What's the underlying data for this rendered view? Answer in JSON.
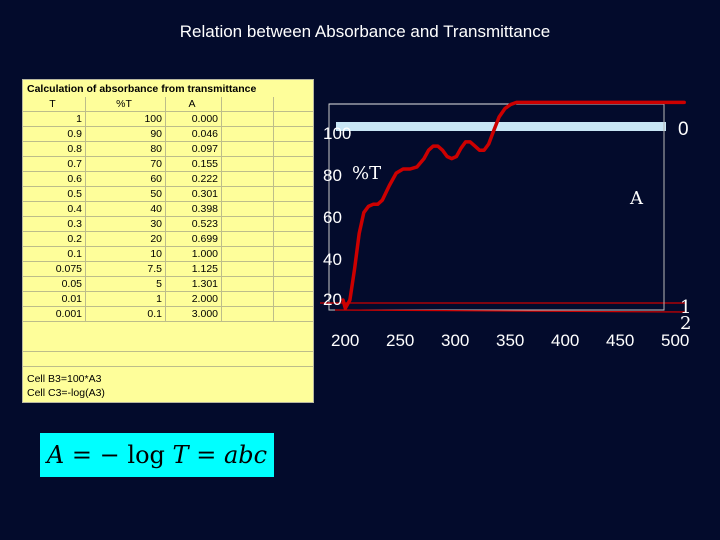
{
  "title": "Relation between Absorbance and Transmittance",
  "spreadsheet": {
    "caption": "Calculation of absorbance from transmittance",
    "headers": [
      "T",
      "%T",
      "A"
    ],
    "rows": [
      [
        "1",
        "100",
        "0.000"
      ],
      [
        "0.9",
        "90",
        "0.046"
      ],
      [
        "0.8",
        "80",
        "0.097"
      ],
      [
        "0.7",
        "70",
        "0.155"
      ],
      [
        "0.6",
        "60",
        "0.222"
      ],
      [
        "0.5",
        "50",
        "0.301"
      ],
      [
        "0.4",
        "40",
        "0.398"
      ],
      [
        "0.3",
        "30",
        "0.523"
      ],
      [
        "0.2",
        "20",
        "0.699"
      ],
      [
        "0.1",
        "10",
        "1.000"
      ],
      [
        "0.075",
        "7.5",
        "1.125"
      ],
      [
        "0.05",
        "5",
        "1.301"
      ],
      [
        "0.01",
        "1",
        "2.000"
      ],
      [
        "0.001",
        "0.1",
        "3.000"
      ]
    ],
    "notes": [
      "Cell B3=100*A3",
      "Cell C3=-log(A3)"
    ]
  },
  "equation": {
    "a": "A",
    "eq1": "=",
    "minus": "−",
    "log": "log",
    "t": "T",
    "eq2": "=",
    "abc": "abc"
  },
  "chart_data": {
    "type": "line",
    "x_ticks": [
      "200",
      "250",
      "300",
      "350",
      "400",
      "450",
      "500"
    ],
    "y_ticks_left": [
      "100",
      "80",
      "60",
      "40",
      "20"
    ],
    "ylabel_left": "%T",
    "ylabel_right": "A",
    "right_ticks": [
      "0",
      "1",
      "2"
    ],
    "xlim": [
      200,
      500
    ],
    "series": [
      {
        "color": "#cc0000",
        "x": [
          200,
          202,
          206,
          210,
          214,
          218,
          222,
          226,
          230,
          234,
          240,
          246,
          252,
          258,
          264,
          270,
          274,
          278,
          282,
          286,
          290,
          294,
          298,
          302,
          306,
          310,
          314,
          318,
          322,
          326,
          330,
          335,
          340,
          345,
          350,
          360,
          380,
          400,
          420,
          440,
          460,
          480,
          495
        ],
        "y": [
          20,
          16,
          20,
          35,
          52,
          62,
          65,
          66,
          66,
          68,
          75,
          81,
          83,
          83,
          84,
          88,
          92,
          94,
          94,
          92,
          89,
          88,
          89,
          93,
          96,
          96,
          94,
          92,
          92,
          95,
          101,
          108,
          112,
          114,
          115,
          115,
          115,
          115,
          115,
          115,
          115,
          115,
          115
        ]
      }
    ],
    "colors": {
      "series": "#cc0000",
      "baseline": "#c8e6f5",
      "axis": "#cc0000"
    }
  }
}
